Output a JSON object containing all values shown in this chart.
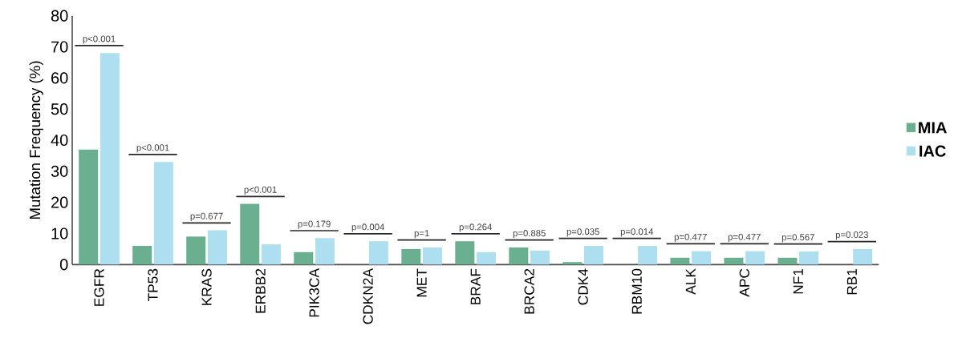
{
  "chart_data": {
    "type": "bar",
    "ylabel": "Mutation Frequency (%)",
    "categories": [
      "EGFR",
      "TP53",
      "KRAS",
      "ERBB2",
      "PIK3CA",
      "CDKN2A",
      "MET",
      "BRAF",
      "BRCA2",
      "CDK4",
      "RBM10",
      "ALK",
      "APC",
      "NF1",
      "RB1"
    ],
    "series": [
      {
        "name": "MIA",
        "color": "#6aaf90",
        "values": [
          37,
          6,
          9,
          19.5,
          4,
          0,
          5,
          7.5,
          5.5,
          0.8,
          0,
          2.2,
          2.2,
          2.2,
          0
        ]
      },
      {
        "name": "IAC",
        "color": "#aedff0",
        "values": [
          68,
          33,
          11,
          6.5,
          8.5,
          7.5,
          5.5,
          4,
          4.5,
          6,
          6,
          4.3,
          4.3,
          4.2,
          5
        ]
      }
    ],
    "ylim": [
      0,
      80
    ],
    "yticks": [
      0,
      10,
      20,
      30,
      40,
      50,
      60,
      70,
      80
    ],
    "grid": false,
    "legend": "right",
    "annotations": [
      "p<0.001",
      "p<0.001",
      "p=0.677",
      "p<0.001",
      "p=0.179",
      "p=0.004",
      "p=1",
      "p=0.264",
      "p=0.885",
      "p=0.035",
      "p=0.014",
      "p=0.477",
      "p=0.477",
      "p=0.567",
      "p=0.023"
    ]
  }
}
